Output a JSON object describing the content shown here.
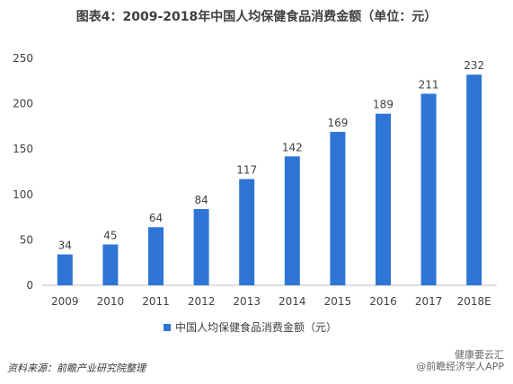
{
  "title": "图表4：2009-2018年中国人均保健食品消费金额（单位：元）",
  "source": "资料来源：前瞻产业研究院整理",
  "watermark": {
    "line1": "健康要云汇",
    "line2": "@前瞻经济学人APP"
  },
  "colors": {
    "bar": "#2E75D6",
    "axis": "#BFBFBF",
    "text": "#404040"
  },
  "chart_data": {
    "type": "bar",
    "title": "图表4：2009-2018年中国人均保健食品消费金额（单位：元）",
    "categories": [
      "2009",
      "2010",
      "2011",
      "2012",
      "2013",
      "2014",
      "2015",
      "2016",
      "2017",
      "2018E"
    ],
    "series": [
      {
        "name": "中国人均保健食品消费金额（元）",
        "values": [
          34,
          45,
          64,
          84,
          117,
          142,
          169,
          189,
          211,
          232
        ]
      }
    ],
    "ylim": [
      0,
      250
    ],
    "yticks": [
      0,
      50,
      100,
      150,
      200,
      250
    ],
    "grid": false,
    "legend": "bottom-center",
    "data_labels": true
  }
}
